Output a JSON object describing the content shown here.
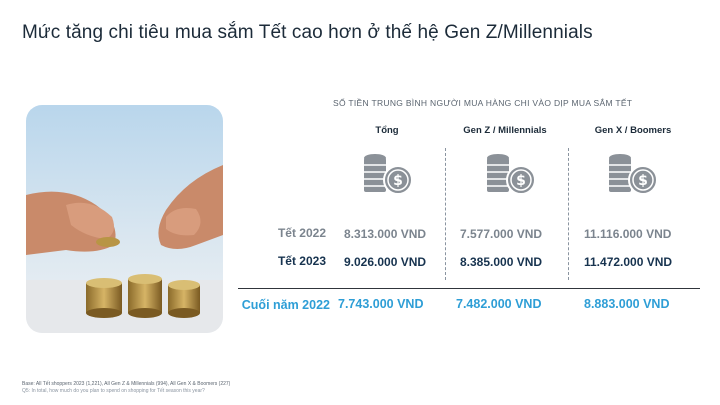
{
  "title": "Mức tăng chi tiêu mua sắm Tết cao hơn ở thế hệ Gen Z/Millennials",
  "chart_data": {
    "type": "table",
    "subtitle": "SỐ TIỀN TRUNG BÌNH NGƯỜI MUA HÀNG CHI VÀO DỊP MUA SẮM TẾT",
    "columns": [
      "Tổng",
      "Gen Z / Millennials",
      "Gen X / Boomers"
    ],
    "rows": [
      {
        "label": "Tết 2022",
        "values": [
          "8.313.000 VND",
          "7.577.000 VND",
          "11.116.000 VND"
        ]
      },
      {
        "label": "Tết 2023",
        "values": [
          "9.026.000 VND",
          "8.385.000 VND",
          "11.472.000 VND"
        ]
      },
      {
        "label": "Cuối năm 2022",
        "values": [
          "7.743.000 VND",
          "7.482.000 VND",
          "8.883.000 VND"
        ]
      }
    ]
  },
  "footnotes": {
    "base": "Base: All Tết shoppers 2023 (1,221), All Gen Z & Millennials (994), All Gen X & Boomers (227)",
    "question": "Q5: In total, how much do you plan to spend on shopping for Tết season this year?"
  },
  "icons": {
    "column_icon": "coin-stack-dollar-icon",
    "photo": "coins-hands-photo"
  },
  "colors": {
    "row_2022": "#7b848e",
    "row_2023": "#17334f",
    "row_end": "#2e9ed6"
  }
}
